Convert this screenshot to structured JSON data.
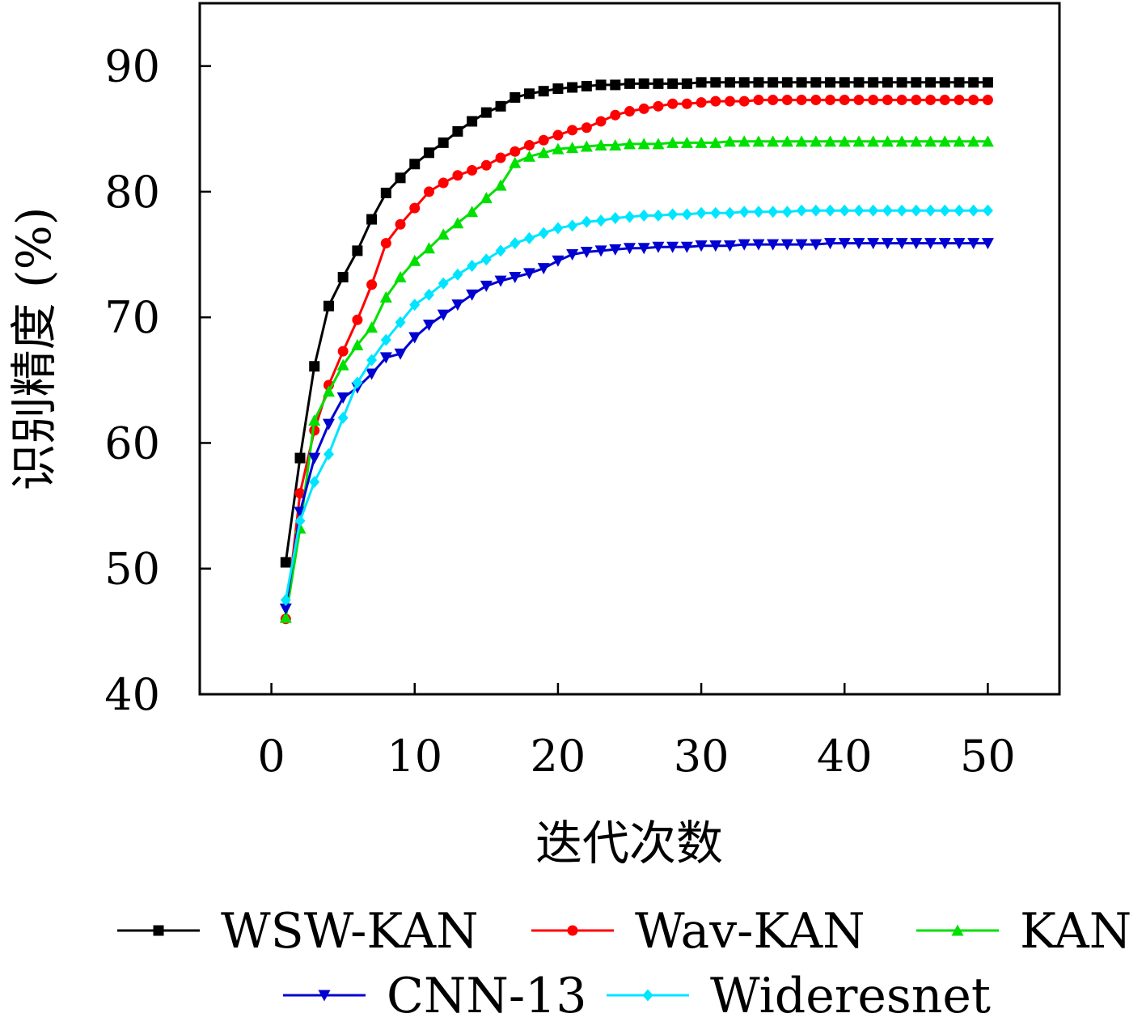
{
  "chart_data": {
    "type": "line",
    "xlabel": "迭代次数",
    "ylabel": "识别精度 (%)",
    "xlim": [
      -5,
      55
    ],
    "ylim": [
      40,
      95
    ],
    "xticks": [
      0,
      10,
      20,
      30,
      40,
      50
    ],
    "yticks": [
      40,
      50,
      60,
      70,
      80,
      90
    ],
    "legend": "bottom",
    "grid": false,
    "x": [
      1,
      2,
      3,
      4,
      5,
      6,
      7,
      8,
      9,
      10,
      11,
      12,
      13,
      14,
      15,
      16,
      17,
      18,
      19,
      20,
      21,
      22,
      23,
      24,
      25,
      26,
      27,
      28,
      29,
      30,
      31,
      32,
      33,
      34,
      35,
      36,
      37,
      38,
      39,
      40,
      41,
      42,
      43,
      44,
      45,
      46,
      47,
      48,
      49,
      50
    ],
    "series": [
      {
        "name": "WSW-KAN",
        "color": "#000000",
        "marker": "square",
        "values": [
          50.5,
          58.8,
          66.1,
          70.9,
          73.2,
          75.3,
          77.8,
          79.9,
          81.1,
          82.2,
          83.1,
          83.9,
          84.8,
          85.6,
          86.3,
          86.8,
          87.5,
          87.8,
          88.0,
          88.2,
          88.3,
          88.4,
          88.5,
          88.5,
          88.6,
          88.6,
          88.6,
          88.6,
          88.6,
          88.7,
          88.7,
          88.7,
          88.7,
          88.7,
          88.7,
          88.7,
          88.7,
          88.7,
          88.7,
          88.7,
          88.7,
          88.7,
          88.7,
          88.7,
          88.7,
          88.7,
          88.7,
          88.7,
          88.7,
          88.7
        ]
      },
      {
        "name": "Wav-KAN",
        "color": "#ff0000",
        "marker": "circle",
        "values": [
          46.0,
          56.0,
          61.0,
          64.6,
          67.3,
          69.8,
          72.6,
          75.9,
          77.4,
          78.7,
          80.0,
          80.7,
          81.3,
          81.7,
          82.1,
          82.7,
          83.2,
          83.7,
          84.1,
          84.5,
          84.9,
          85.1,
          85.6,
          86.1,
          86.4,
          86.6,
          86.8,
          87.0,
          87.0,
          87.1,
          87.2,
          87.2,
          87.2,
          87.3,
          87.3,
          87.3,
          87.3,
          87.3,
          87.3,
          87.3,
          87.3,
          87.3,
          87.3,
          87.3,
          87.3,
          87.3,
          87.3,
          87.3,
          87.3,
          87.3
        ]
      },
      {
        "name": "KAN",
        "color": "#00e000",
        "marker": "triangle-up",
        "values": [
          46.1,
          53.2,
          61.8,
          64.1,
          66.2,
          67.8,
          69.2,
          71.6,
          73.2,
          74.5,
          75.5,
          76.6,
          77.5,
          78.4,
          79.5,
          80.5,
          82.3,
          82.8,
          83.1,
          83.4,
          83.5,
          83.6,
          83.7,
          83.7,
          83.8,
          83.8,
          83.8,
          83.9,
          83.9,
          83.9,
          83.9,
          84.0,
          84.0,
          84.0,
          84.0,
          84.0,
          84.0,
          84.0,
          84.0,
          84.0,
          84.0,
          84.0,
          84.0,
          84.0,
          84.0,
          84.0,
          84.0,
          84.0,
          84.0,
          84.0
        ]
      },
      {
        "name": "CNN-13",
        "color": "#0000d0",
        "marker": "triangle-down",
        "values": [
          46.8,
          54.5,
          58.8,
          61.5,
          63.6,
          64.4,
          65.5,
          66.8,
          67.1,
          68.4,
          69.4,
          70.2,
          71.0,
          71.8,
          72.5,
          72.9,
          73.2,
          73.5,
          73.9,
          74.5,
          75.0,
          75.2,
          75.3,
          75.4,
          75.5,
          75.5,
          75.6,
          75.6,
          75.6,
          75.7,
          75.7,
          75.7,
          75.8,
          75.8,
          75.8,
          75.8,
          75.8,
          75.8,
          75.9,
          75.9,
          75.9,
          75.9,
          75.9,
          75.9,
          75.9,
          75.9,
          75.9,
          75.9,
          75.9,
          75.9
        ]
      },
      {
        "name": "Wideresnet",
        "color": "#00e5ff",
        "marker": "diamond",
        "values": [
          47.5,
          53.8,
          56.9,
          59.1,
          62.0,
          64.8,
          66.6,
          68.2,
          69.6,
          71.0,
          71.8,
          72.7,
          73.4,
          74.1,
          74.6,
          75.3,
          75.9,
          76.3,
          76.7,
          77.1,
          77.3,
          77.6,
          77.7,
          77.9,
          78.0,
          78.1,
          78.1,
          78.2,
          78.2,
          78.3,
          78.3,
          78.3,
          78.4,
          78.4,
          78.4,
          78.4,
          78.5,
          78.5,
          78.5,
          78.5,
          78.5,
          78.5,
          78.5,
          78.5,
          78.5,
          78.5,
          78.5,
          78.5,
          78.5,
          78.5
        ]
      }
    ]
  }
}
